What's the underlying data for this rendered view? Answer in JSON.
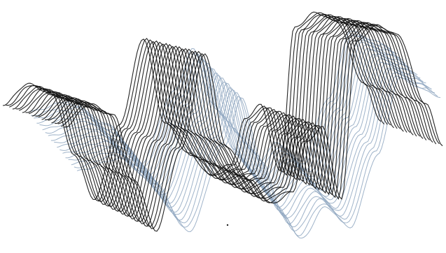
{
  "image": {
    "subject": "wave-line-art",
    "background_color": "#ffffff",
    "layers": [
      {
        "name": "blue-wave-band",
        "color": "#8ea6bf",
        "line_count": 18
      },
      {
        "name": "black-wave-band",
        "color": "#111111",
        "line_count": 20
      }
    ]
  }
}
